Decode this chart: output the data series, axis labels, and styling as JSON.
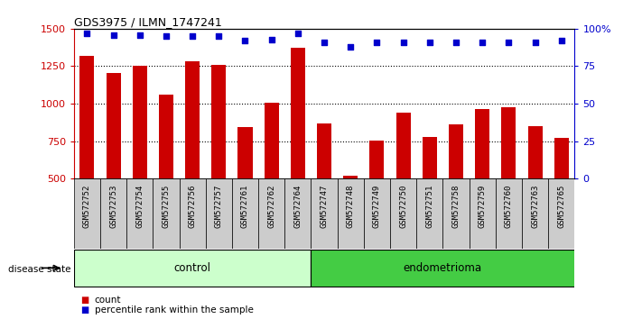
{
  "title": "GDS3975 / ILMN_1747241",
  "samples": [
    "GSM572752",
    "GSM572753",
    "GSM572754",
    "GSM572755",
    "GSM572756",
    "GSM572757",
    "GSM572761",
    "GSM572762",
    "GSM572764",
    "GSM572747",
    "GSM572748",
    "GSM572749",
    "GSM572750",
    "GSM572751",
    "GSM572758",
    "GSM572759",
    "GSM572760",
    "GSM572763",
    "GSM572765"
  ],
  "counts": [
    1316,
    1202,
    1253,
    1060,
    1280,
    1258,
    843,
    1007,
    1375,
    869,
    519,
    756,
    940,
    777,
    862,
    964,
    974,
    851,
    771
  ],
  "percentiles": [
    97,
    96,
    96,
    95,
    95,
    95,
    92,
    93,
    97,
    91,
    88,
    91,
    91,
    91,
    91,
    91,
    91,
    91,
    92
  ],
  "control_count": 9,
  "endometrioma_count": 10,
  "ylim_left": [
    500,
    1500
  ],
  "ylim_right": [
    0,
    100
  ],
  "yticks_left": [
    500,
    750,
    1000,
    1250,
    1500
  ],
  "yticks_right": [
    0,
    25,
    50,
    75,
    100
  ],
  "ytick_labels_right": [
    "0",
    "25",
    "50",
    "75",
    "100%"
  ],
  "bar_color": "#cc0000",
  "dot_color": "#0000cc",
  "control_bg": "#ccffcc",
  "endometrioma_bg": "#44cc44",
  "label_bg": "#cccccc",
  "disease_state_label": "disease state",
  "control_label": "control",
  "endometrioma_label": "endometrioma",
  "legend_count": "count",
  "legend_pct": "percentile rank within the sample",
  "legend_count_color": "#cc0000",
  "legend_pct_color": "#0000cc"
}
